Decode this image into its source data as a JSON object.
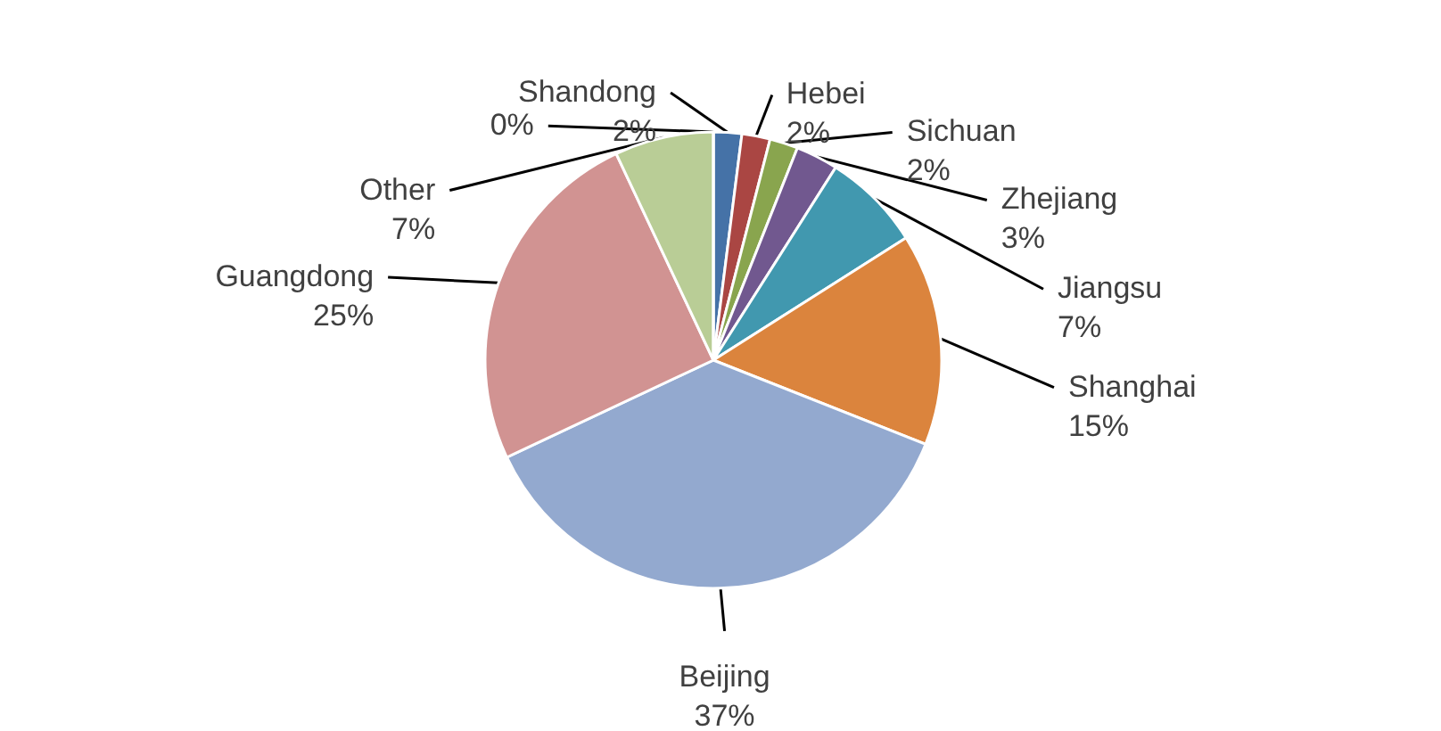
{
  "chart_data": {
    "type": "pie",
    "categories": [
      "Shandong",
      "Hebei",
      "Sichuan",
      "Zhejiang",
      "Jiangsu",
      "Shanghai",
      "Beijing",
      "Guangdong",
      "Other",
      null
    ],
    "values": [
      2,
      2,
      2,
      3,
      7,
      15,
      37,
      25,
      7,
      0
    ],
    "value_labels": [
      "2%",
      "2%",
      "2%",
      "3%",
      "7%",
      "15%",
      "37%",
      "25%",
      "7%",
      "0%"
    ],
    "colors": [
      "#4572a7",
      "#aa4643",
      "#89a54e",
      "#71588f",
      "#4198af",
      "#db843d",
      "#93a9cf",
      "#d19392",
      "#b9cd96",
      "#a99bbd"
    ]
  }
}
